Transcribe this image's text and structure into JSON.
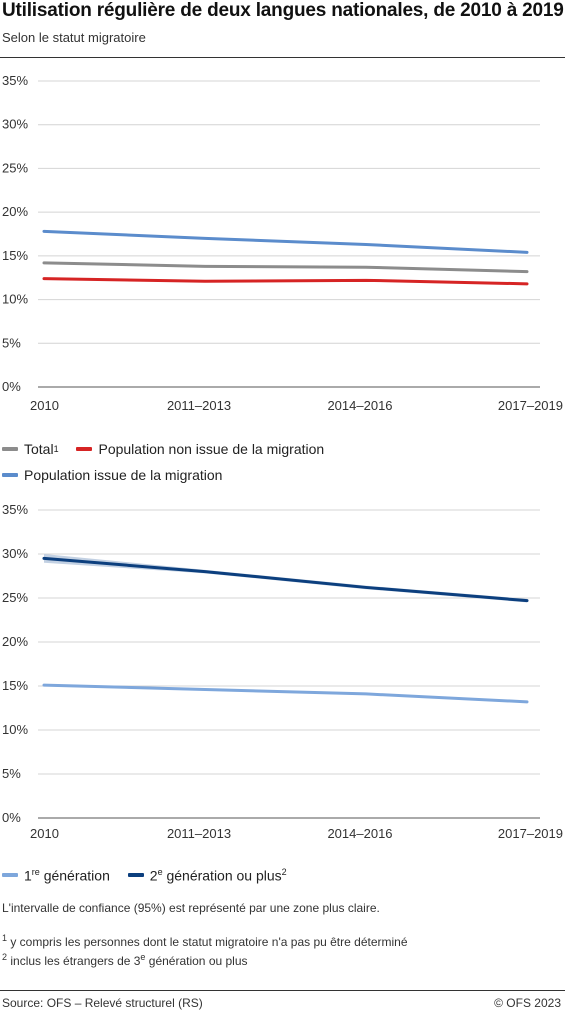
{
  "header": {
    "title": "Utilisation régulière de deux langues nationales, de 2010 à 2019",
    "subtitle": "Selon le statut migratoire"
  },
  "chart_data": [
    {
      "type": "line",
      "x": [
        "2010",
        "2011–2013",
        "2014–2016",
        "2017–2019"
      ],
      "ylim": [
        0,
        35
      ],
      "yticks": [
        "35%",
        "30%",
        "25%",
        "20%",
        "15%",
        "10%",
        "5%",
        "0%"
      ],
      "grid": true,
      "legend_position": "bottom",
      "series": [
        {
          "name": "Population issue de la migration",
          "color": "#5b8ccc",
          "values": [
            17.8,
            17.0,
            16.3,
            15.4
          ]
        },
        {
          "name": "Total",
          "color": "#8c8c8c",
          "values": [
            14.2,
            13.8,
            13.7,
            13.2
          ]
        },
        {
          "name": "Population non issue de la migration",
          "color": "#d62424",
          "values": [
            12.4,
            12.1,
            12.2,
            11.8
          ]
        }
      ]
    },
    {
      "type": "line",
      "x": [
        "2010",
        "2011–2013",
        "2014–2016",
        "2017–2019"
      ],
      "ylim": [
        0,
        35
      ],
      "yticks": [
        "35%",
        "30%",
        "25%",
        "20%",
        "15%",
        "10%",
        "5%",
        "0%"
      ],
      "grid": true,
      "legend_position": "bottom",
      "series": [
        {
          "name": "2e génération ou plus",
          "color": "#0c3f7e",
          "values": [
            29.5,
            28.0,
            26.2,
            24.7
          ],
          "ci_lower": [
            29.0,
            27.8,
            26.0,
            24.5
          ],
          "ci_upper": [
            30.0,
            28.2,
            26.4,
            24.9
          ]
        },
        {
          "name": "1re génération",
          "color": "#7ea7dc",
          "values": [
            15.1,
            14.6,
            14.1,
            13.2
          ]
        }
      ]
    }
  ],
  "legend1": {
    "total": "Total",
    "total_note": "1",
    "non_migration": "Population non issue de la migration",
    "migration": "Population issue de la migration"
  },
  "legend2": {
    "gen1_num": "1",
    "gen1_sup": "re",
    "gen1_text": " génération",
    "gen2_num": "2",
    "gen2_sup": "e",
    "gen2_text": " génération ou plus",
    "gen2_note": "2"
  },
  "notes": {
    "ci": "L'intervalle de confiance (95%) est représenté par une zone plus claire.",
    "fn1_mark": "1",
    "fn1": " y compris les personnes dont le statut migratoire n'a pas pu être déterminé",
    "fn2_mark": "2",
    "fn2_a": " inclus les étrangers de 3",
    "fn2_sup": "e",
    "fn2_b": " génération ou plus"
  },
  "footer": {
    "source": "Source: OFS – Relevé structurel (RS)",
    "copyright": "© OFS 2023"
  }
}
